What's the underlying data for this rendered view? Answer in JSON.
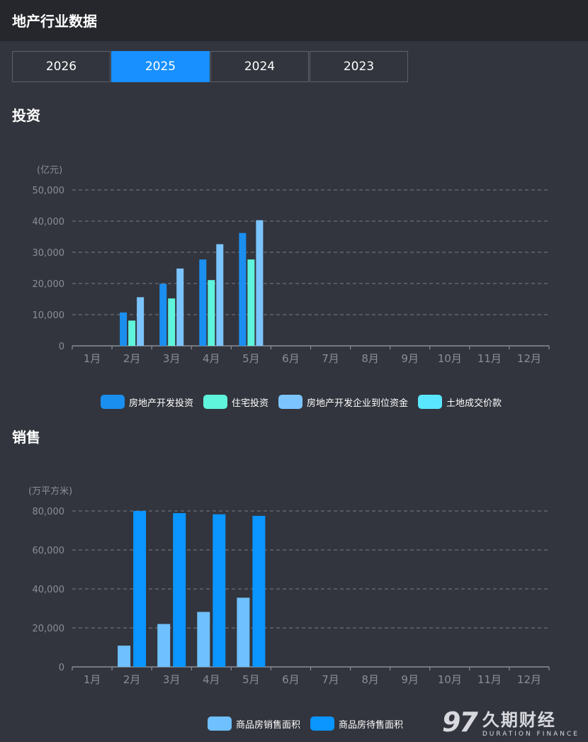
{
  "header": {
    "title": "地产行业数据"
  },
  "tabs": [
    {
      "label": "2026",
      "active": false
    },
    {
      "label": "2025",
      "active": true
    },
    {
      "label": "2024",
      "active": false
    },
    {
      "label": "2023",
      "active": false
    }
  ],
  "sections": {
    "investment_title": "投资",
    "sales_title": "销售"
  },
  "colors": {
    "accent": "#1890ff",
    "tab_border": "#5d6169",
    "grid": "#6b6f77",
    "axis_text": "#8a8e96"
  },
  "chart_data": [
    {
      "type": "bar",
      "unit": "(亿元)",
      "categories": [
        "1月",
        "2月",
        "3月",
        "4月",
        "5月",
        "6月",
        "7月",
        "8月",
        "9月",
        "10月",
        "11月",
        "12月"
      ],
      "ylim": [
        0,
        50000
      ],
      "yticks": [
        "0",
        "10,000",
        "20,000",
        "30,000",
        "40,000",
        "50,000"
      ],
      "grid": true,
      "legend": "bottom-center",
      "series": [
        {
          "name": "房地产开发投资",
          "color": "#1a8ff0",
          "values": [
            null,
            10700,
            19900,
            27700,
            36200,
            null,
            null,
            null,
            null,
            null,
            null,
            null
          ]
        },
        {
          "name": "住宅投资",
          "color": "#5ef5dc",
          "values": [
            null,
            8100,
            15200,
            21100,
            27700,
            null,
            null,
            null,
            null,
            null,
            null,
            null
          ]
        },
        {
          "name": "房地产开发企业到位资金",
          "color": "#7cc4ff",
          "values": [
            null,
            15600,
            24800,
            32600,
            40300,
            null,
            null,
            null,
            null,
            null,
            null,
            null
          ]
        },
        {
          "name": "土地成交价款",
          "color": "#5ae6ff",
          "values": [
            null,
            null,
            null,
            null,
            null,
            null,
            null,
            null,
            null,
            null,
            null,
            null
          ]
        }
      ]
    },
    {
      "type": "bar",
      "unit": "(万平方米)",
      "categories": [
        "1月",
        "2月",
        "3月",
        "4月",
        "5月",
        "6月",
        "7月",
        "8月",
        "9月",
        "10月",
        "11月",
        "12月"
      ],
      "ylim": [
        0,
        80000
      ],
      "yticks": [
        "0",
        "20,000",
        "40,000",
        "60,000",
        "80,000"
      ],
      "grid": true,
      "legend": "bottom-center",
      "series": [
        {
          "name": "商品房销售面积",
          "color": "#6fc0ff",
          "values": [
            null,
            10900,
            22000,
            28200,
            35500,
            null,
            null,
            null,
            null,
            null,
            null,
            null
          ]
        },
        {
          "name": "商品房待售面积",
          "color": "#0a95ff",
          "values": [
            null,
            80000,
            78900,
            78300,
            77500,
            null,
            null,
            null,
            null,
            null,
            null,
            null
          ]
        }
      ]
    }
  ],
  "watermark": {
    "num": "97",
    "cn": "久期财经",
    "en": "DURATION FINANCE"
  }
}
